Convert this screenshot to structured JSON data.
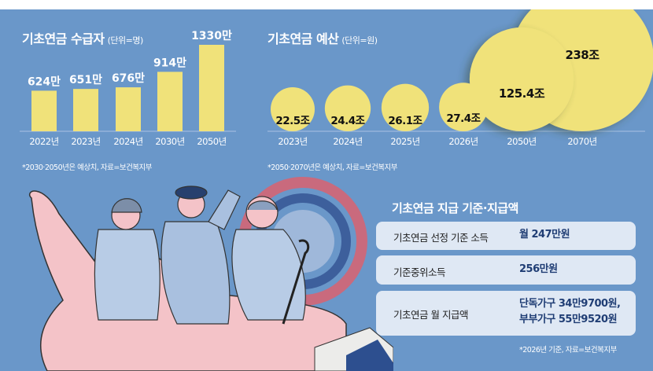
{
  "chart_data": [
    {
      "type": "bar",
      "title": "기초연금 수급자",
      "unit": "(단위=명)",
      "categories": [
        "2022년",
        "2023년",
        "2024년",
        "2030년",
        "2050년"
      ],
      "values": [
        624,
        651,
        676,
        914,
        1330
      ],
      "data_labels": [
        "624만",
        "651만",
        "676만",
        "914만",
        "1330만"
      ],
      "value_unit": "만",
      "bar_color": "#f0e27a",
      "note": "*2030·2050년은 예상치, 자료=보건복지부"
    },
    {
      "type": "bubble",
      "title": "기초연금 예산",
      "unit": "(단위=원)",
      "categories": [
        "2023년",
        "2024년",
        "2025년",
        "2026년",
        "2050년",
        "2070년"
      ],
      "values": [
        22.5,
        24.4,
        26.1,
        27.4,
        125.4,
        238
      ],
      "data_labels": [
        "22.5조",
        "24.4조",
        "26.1조",
        "27.4조",
        "125.4조",
        "238조"
      ],
      "value_unit": "조",
      "bubble_color": "#f0e27a",
      "note": "*2050·2070년은 예상치, 자료=보건복지부"
    }
  ],
  "criteria": {
    "title": "기초연금 지급 기준·지급액",
    "rows": [
      {
        "label": "기초연금 선정 기준 소득",
        "value": "월 247만원"
      },
      {
        "label": "기준중위소득",
        "value": "256만원"
      },
      {
        "label": "기초연금 월 지급액",
        "value": "단독가구 34만9700원,",
        "value2": "부부가구 55만9520원"
      }
    ],
    "note": "*2026년 기준, 자료=보건복지부"
  },
  "colors": {
    "background": "#6a97c9",
    "accent": "#f0e27a",
    "value_text": "#1f3d74"
  }
}
